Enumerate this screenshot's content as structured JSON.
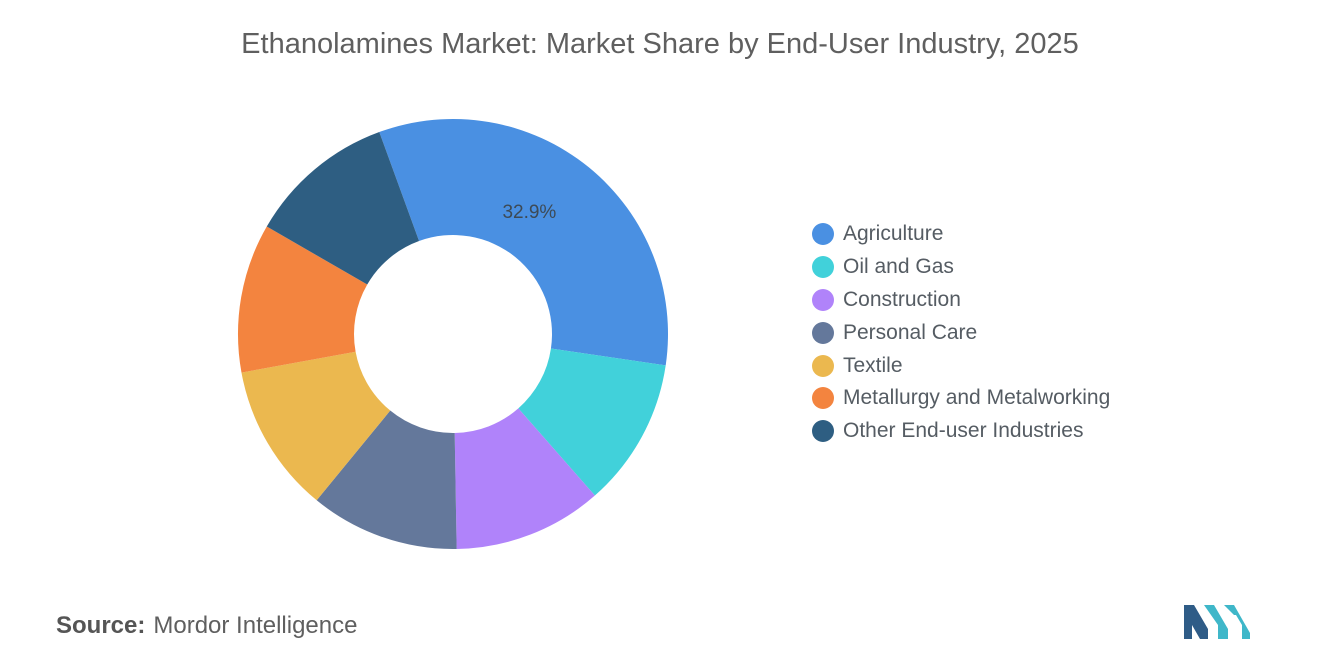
{
  "chart_data": {
    "type": "pie",
    "title": "Ethanolamines Market: Market Share by End-User Industry, 2025",
    "categories": [
      "Agriculture",
      "Oil and Gas",
      "Construction",
      "Personal Care",
      "Textile",
      "Metallurgy and Metalworking",
      "Other End-user Industries"
    ],
    "values": [
      32.9,
      11.2,
      11.2,
      11.2,
      11.2,
      11.2,
      11.1
    ],
    "value_labels": [
      "32.9%",
      "",
      "",
      "",
      "",
      "",
      ""
    ],
    "colors": [
      "#4a90e2",
      "#41d1da",
      "#b083fa",
      "#64789b",
      "#ebb84f",
      "#f3843f",
      "#2e5e82"
    ],
    "legend_position": "right",
    "donut": true
  },
  "source": {
    "label": "Source:",
    "text": "Mordor Intelligence"
  },
  "logo": {
    "icon": "mordor-intelligence-logo-icon",
    "colors": [
      "#2f5c87",
      "#3fb7c9"
    ]
  }
}
